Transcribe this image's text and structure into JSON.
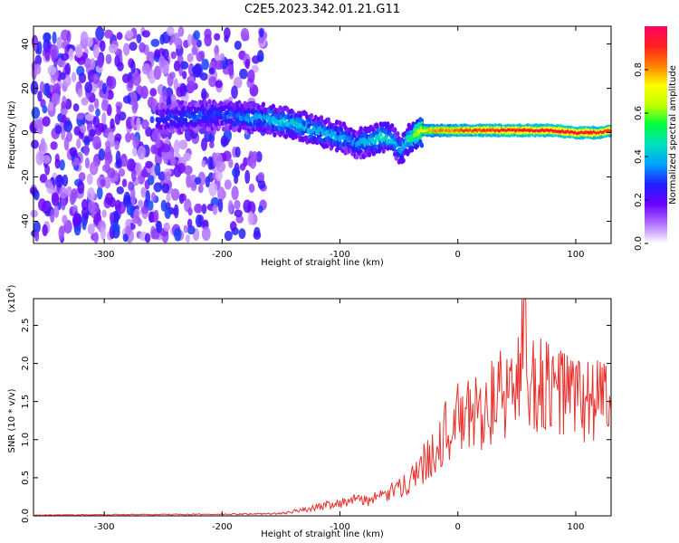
{
  "title": "C2E5.2023.342.01.21.G11",
  "chart_data": [
    {
      "type": "heatmap",
      "xlabel": "Height of straight line (km)",
      "ylabel": "Frequency (Hz)",
      "xlim": [
        -360,
        130
      ],
      "ylim": [
        -50,
        48
      ],
      "x_ticks": [
        -300,
        -200,
        -100,
        0,
        100
      ],
      "y_ticks": [
        -40,
        -20,
        0,
        20,
        40
      ],
      "colorbar": {
        "label": "Normalized spectral amplitude",
        "range": [
          0.0,
          1.0
        ],
        "ticks": [
          0.0,
          0.2,
          0.4,
          0.6,
          0.8
        ],
        "tick_labels": [
          "0.0",
          "0.2",
          "0.4",
          "0.6",
          "0.8"
        ],
        "colors": [
          "#ffffff",
          "#b070ff",
          "#6a00ff",
          "#2020ff",
          "#00a0ff",
          "#00e0c0",
          "#00ff40",
          "#c0ff00",
          "#ffff00",
          "#ff8000",
          "#ff2020",
          "#ff0060"
        ]
      },
      "noise_region": {
        "x_range": [
          -360,
          -165
        ],
        "y_range": [
          -50,
          48
        ]
      },
      "signal_track": {
        "x": [
          -255,
          -230,
          -200,
          -180,
          -160,
          -140,
          -120,
          -100,
          -85,
          -75,
          -65,
          -55,
          -48,
          -44,
          -40,
          -30,
          -20,
          0,
          20,
          50,
          80,
          100,
          120,
          130
        ],
        "center_freq": [
          6,
          7,
          8,
          7,
          6,
          4,
          1,
          -2,
          -5,
          -4,
          -2,
          -3,
          -8,
          -4,
          -2,
          1,
          1,
          1,
          1,
          1,
          1,
          0,
          0,
          1
        ],
        "amplitude": [
          0.25,
          0.3,
          0.3,
          0.35,
          0.4,
          0.42,
          0.4,
          0.38,
          0.35,
          0.4,
          0.45,
          0.4,
          0.35,
          0.45,
          0.5,
          0.7,
          0.8,
          0.85,
          0.9,
          0.92,
          0.95,
          0.95,
          0.92,
          0.9
        ]
      }
    },
    {
      "type": "line",
      "xlabel": "Height of straight line (km)",
      "ylabel": "SNR (10 * v/v)",
      "multiplier_label": "(x10",
      "multiplier_exp": "4",
      "multiplier_close": ")",
      "xlim": [
        -360,
        130
      ],
      "ylim": [
        0,
        28500
      ],
      "x_ticks": [
        -300,
        -200,
        -100,
        0,
        100
      ],
      "y_ticks": [
        0,
        5000,
        10000,
        15000,
        20000,
        25000
      ],
      "y_tick_labels": [
        "0.0",
        "0.5",
        "1.0",
        "1.5",
        "2.0",
        "2.5"
      ],
      "series": [
        {
          "name": "SNR",
          "color": "#e8312c",
          "x": [
            -360,
            -300,
            -200,
            -150,
            -130,
            -110,
            -90,
            -70,
            -50,
            -40,
            -30,
            -20,
            -10,
            0,
            10,
            20,
            30,
            40,
            50,
            57,
            60,
            70,
            80,
            90,
            100,
            110,
            120,
            125,
            130
          ],
          "y": [
            100,
            150,
            200,
            300,
            800,
            1500,
            2000,
            2200,
            3500,
            5000,
            6500,
            9000,
            11000,
            12500,
            13000,
            14000,
            15000,
            16000,
            17000,
            24000,
            17000,
            17500,
            16000,
            16500,
            15500,
            15000,
            16000,
            16500,
            11000
          ],
          "noise_amplitude_fraction": 0.4
        }
      ]
    }
  ]
}
